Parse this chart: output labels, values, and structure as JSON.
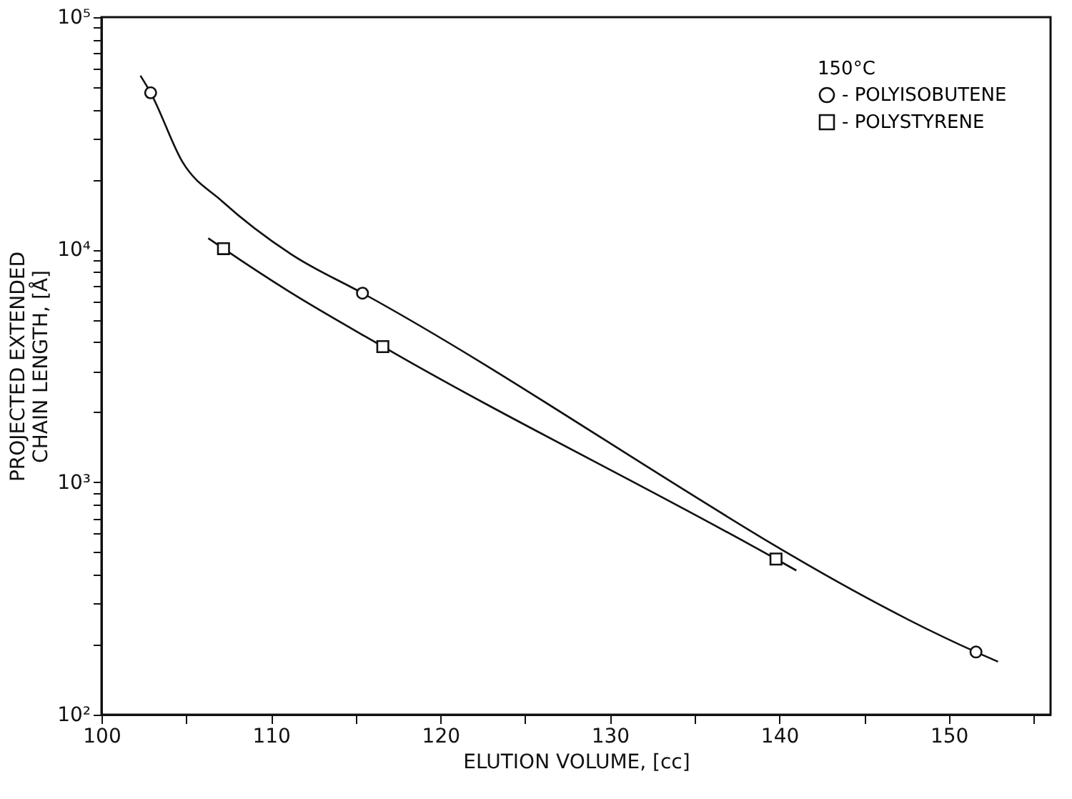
{
  "chart_data": {
    "type": "line",
    "xlabel": "ELUTION VOLUME, [cc]",
    "ylabel": "PROJECTED EXTENDED\nCHAIN LENGTH, [Å]",
    "legend_title": "150°C",
    "legend": "top right",
    "grid": false,
    "log": "y",
    "xlim": [
      100,
      156
    ],
    "xticks": [
      100,
      {
        "value": 105,
        "label": null
      },
      110,
      {
        "value": 115,
        "label": null
      },
      120,
      {
        "value": 125,
        "label": null
      },
      130,
      {
        "value": 135,
        "label": null
      },
      140,
      {
        "value": 145,
        "label": null
      },
      150,
      {
        "value": 155,
        "label": null
      }
    ],
    "ylim": [
      100,
      100000
    ],
    "yticks": [
      {
        "value": 100,
        "label": "10²"
      },
      {
        "value": 200,
        "label": null
      },
      {
        "value": 300,
        "label": null
      },
      {
        "value": 400,
        "label": null
      },
      {
        "value": 500,
        "label": null
      },
      {
        "value": 600,
        "label": null
      },
      {
        "value": 700,
        "label": null
      },
      {
        "value": 800,
        "label": null
      },
      {
        "value": 900,
        "label": null
      },
      {
        "value": 1000,
        "label": "10³"
      },
      {
        "value": 2000,
        "label": null
      },
      {
        "value": 3000,
        "label": null
      },
      {
        "value": 4000,
        "label": null
      },
      {
        "value": 5000,
        "label": null
      },
      {
        "value": 6000,
        "label": null
      },
      {
        "value": 7000,
        "label": null
      },
      {
        "value": 8000,
        "label": null
      },
      {
        "value": 9000,
        "label": null
      },
      {
        "value": 10000,
        "label": "10⁴"
      },
      {
        "value": 20000,
        "label": null
      },
      {
        "value": 30000,
        "label": null
      },
      {
        "value": 40000,
        "label": null
      },
      {
        "value": 50000,
        "label": null
      },
      {
        "value": 60000,
        "label": null
      },
      {
        "value": 70000,
        "label": null
      },
      {
        "value": 80000,
        "label": null
      },
      {
        "value": 90000,
        "label": null
      },
      {
        "value": 100000,
        "label": "10⁵"
      }
    ],
    "series": [
      {
        "color": "#111111",
        "line_style": "solid",
        "marker": "none",
        "x": [
          102.3,
          102.9,
          104.8,
          107.1,
          111.2,
          115.4,
          151.6,
          152.9
        ],
        "values": [
          56000,
          47300,
          23700,
          16200,
          9550,
          6500,
          186,
          169
        ]
      },
      {
        "color": "#111111",
        "line_style": "solid",
        "marker": "none",
        "x": [
          106.3,
          107.2,
          111.0,
          116.6,
          139.8,
          141.0
        ],
        "values": [
          11200,
          10100,
          6650,
          3830,
          467,
          417
        ]
      },
      {
        "type": "scatter",
        "name": "- POLYISOBUTENE",
        "color": "#111111",
        "marker": "circle",
        "x": [
          102.9,
          115.4,
          151.6
        ],
        "values": [
          47300,
          6500,
          186
        ]
      },
      {
        "type": "scatter",
        "name": "- POLYSTYRENE",
        "color": "#111111",
        "marker": "square",
        "x": [
          107.2,
          116.6,
          139.8
        ],
        "values": [
          10100,
          3830,
          467
        ]
      }
    ]
  }
}
